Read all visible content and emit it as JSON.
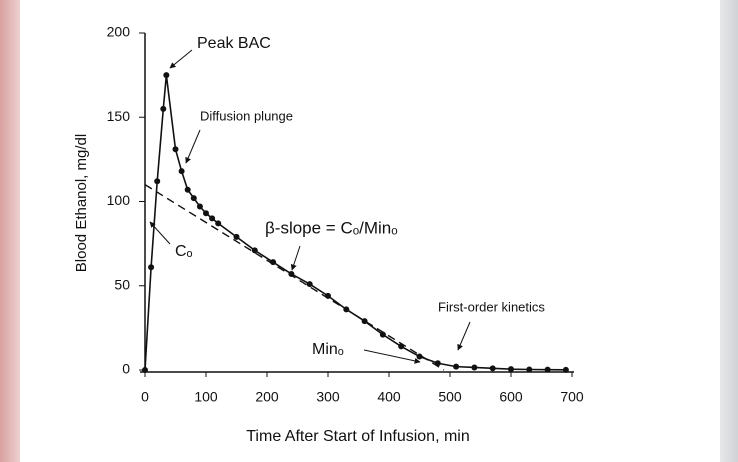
{
  "chart_data": {
    "type": "line",
    "x_label": "Time After Start of Infusion, min",
    "y_label": "Blood Ethanol, mg/dl",
    "x": [
      0,
      10,
      20,
      30,
      35,
      50,
      60,
      70,
      80,
      90,
      100,
      110,
      120,
      150,
      180,
      210,
      240,
      270,
      300,
      330,
      360,
      390,
      420,
      450,
      480,
      510,
      540,
      570,
      600,
      630,
      660,
      690
    ],
    "values": [
      0,
      61,
      112,
      155,
      175,
      131,
      118,
      107,
      102,
      97,
      93,
      90,
      87,
      79,
      71,
      64,
      57,
      51,
      44,
      36,
      29,
      21,
      14,
      8,
      4,
      2,
      1.5,
      1,
      0.5,
      0.3,
      0.2,
      0.1
    ],
    "color": "#111111",
    "extrapolation": {
      "x": [
        0,
        490
      ],
      "values": [
        110,
        0
      ]
    },
    "xlim": [
      0,
      700
    ],
    "xticks": [
      0,
      100,
      200,
      300,
      400,
      500,
      600,
      700
    ],
    "ylim": [
      0,
      200
    ],
    "yticks": [
      0,
      50,
      100,
      150,
      200
    ],
    "annotations": [
      "Peak BAC",
      "Diffusion plunge",
      "β-slope = Cₒ/Minₒ",
      "Cₒ",
      "Minₒ",
      "First-order kinetics"
    ]
  }
}
